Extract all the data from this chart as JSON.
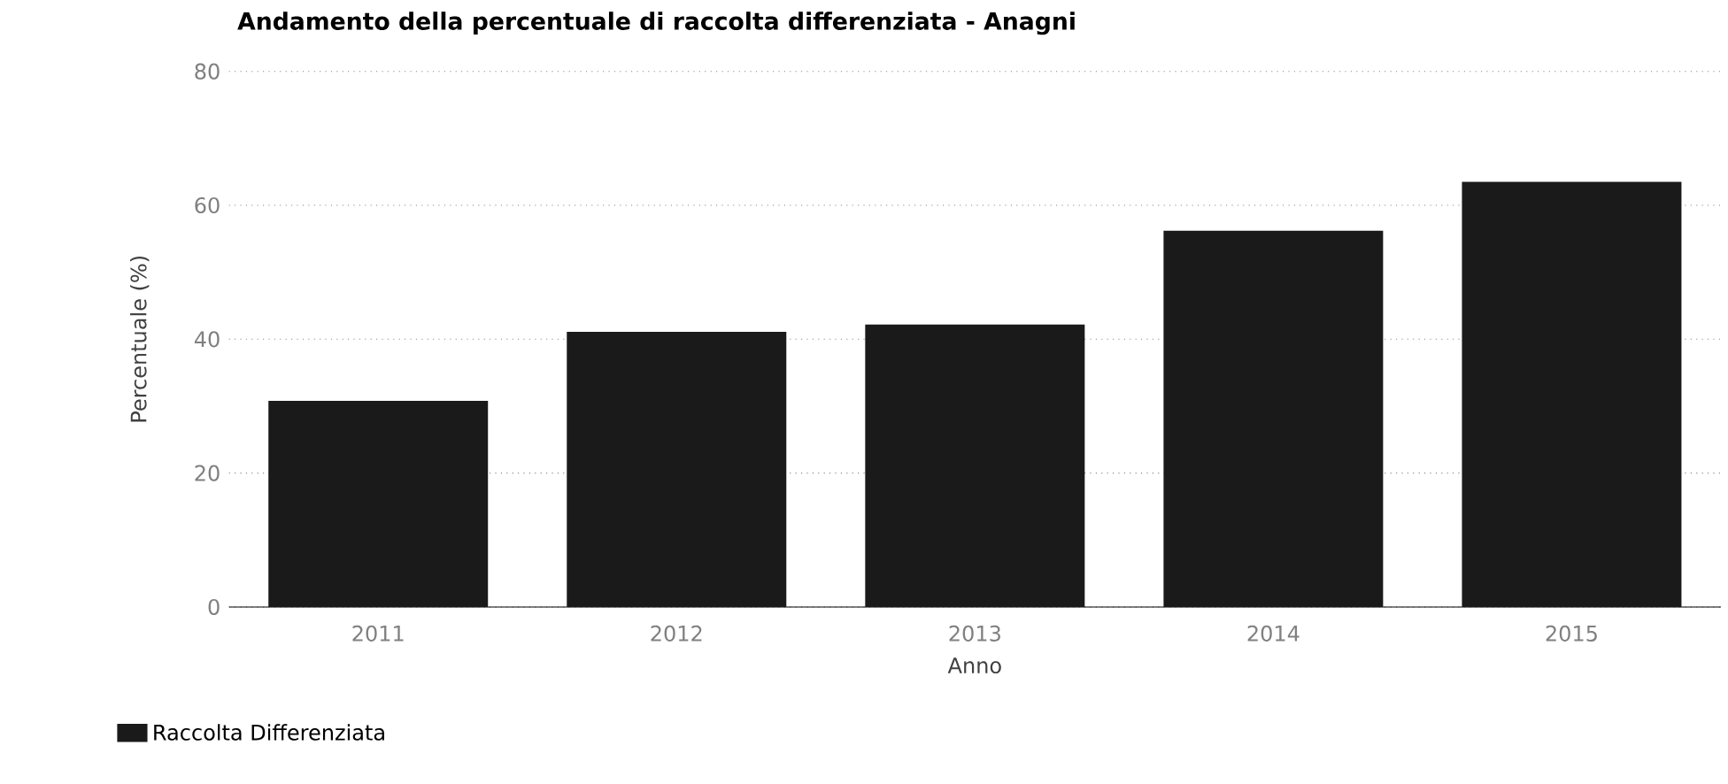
{
  "chart_data": {
    "type": "bar",
    "title": "Andamento della percentuale di raccolta differenziata - Anagni",
    "xlabel": "Anno",
    "ylabel": "Percentuale (%)",
    "categories": [
      "2011",
      "2012",
      "2013",
      "2014",
      "2015"
    ],
    "series": [
      {
        "name": "Raccolta Differenziata",
        "color": "#1a1a1a",
        "values": [
          30.8,
          41.1,
          42.2,
          56.2,
          63.5
        ]
      }
    ],
    "ylim": [
      0,
      80
    ],
    "yticks": [
      0,
      20,
      40,
      60,
      80
    ],
    "grid": "y",
    "legend": "bottom left"
  }
}
